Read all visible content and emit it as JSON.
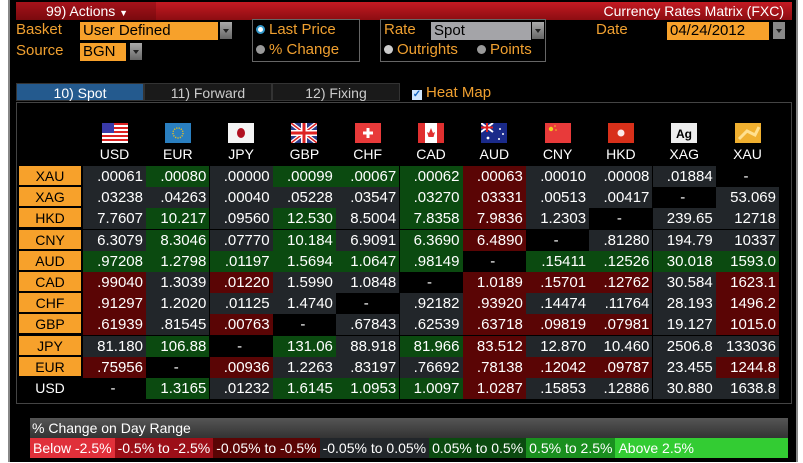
{
  "window": {
    "actions_label": "99) Actions",
    "title": "Currency Rates Matrix (FXC)"
  },
  "controls": {
    "basket_label": "Basket",
    "basket_value": "User Defined",
    "source_label": "Source",
    "source_value": "BGN",
    "price_options": [
      {
        "label": "Last Price",
        "selected": true
      },
      {
        "label": "% Change",
        "selected": false
      }
    ],
    "rate_label": "Rate",
    "rate_value": "Spot",
    "rate_options": [
      {
        "label": "Outrights",
        "selected": true
      },
      {
        "label": "Points",
        "selected": false
      }
    ],
    "date_label": "Date",
    "date_value": "04/24/2012"
  },
  "tabs": [
    {
      "label": "10) Spot",
      "active": true
    },
    {
      "label": "11) Forward",
      "active": false
    },
    {
      "label": "12) Fixing",
      "active": false
    }
  ],
  "heat_map": {
    "label": "Heat Map",
    "checked": true
  },
  "columns": [
    "USD",
    "EUR",
    "JPY",
    "GBP",
    "CHF",
    "CAD",
    "AUD",
    "CNY",
    "HKD",
    "XAG",
    "XAU"
  ],
  "column_icons": [
    "us-flag-icon",
    "eu-flag-icon",
    "japan-flag-icon",
    "uk-flag-icon",
    "swiss-flag-icon",
    "canada-flag-icon",
    "australia-flag-icon",
    "china-flag-icon",
    "hong-kong-flag-icon",
    "silver-icon",
    "gold-icon"
  ],
  "rows": [
    {
      "label": "XAU",
      "values": [
        ".00061",
        ".00080",
        ".00000",
        ".00099",
        ".00067",
        ".00062",
        ".00063",
        ".00010",
        ".00008",
        ".01884",
        "-"
      ],
      "heat": [
        "neutral",
        "up",
        "neutral",
        "up",
        "up",
        "up",
        "down",
        "neutral",
        "neutral",
        "neutral",
        "none"
      ]
    },
    {
      "label": "XAG",
      "values": [
        ".03238",
        ".04263",
        ".00040",
        ".05228",
        ".03547",
        ".03270",
        ".03331",
        ".00513",
        ".00417",
        "-",
        "53.069"
      ],
      "heat": [
        "neutral",
        "neutral",
        "neutral",
        "neutral",
        "neutral",
        "up",
        "down",
        "neutral",
        "neutral",
        "none",
        "neutral"
      ]
    },
    {
      "label": "HKD",
      "values": [
        "7.7607",
        "10.217",
        ".09560",
        "12.530",
        "8.5004",
        "7.8358",
        "7.9836",
        "1.2303",
        "-",
        "239.65",
        "12718"
      ],
      "heat": [
        "neutral",
        "up",
        "neutral",
        "up",
        "neutral",
        "up",
        "down",
        "neutral",
        "none",
        "neutral",
        "neutral"
      ]
    },
    {
      "label": "CNY",
      "values": [
        "6.3079",
        "8.3046",
        ".07770",
        "10.184",
        "6.9091",
        "6.3690",
        "6.4890",
        "-",
        ".81280",
        "194.79",
        "10337"
      ],
      "heat": [
        "neutral",
        "up",
        "neutral",
        "up",
        "neutral",
        "up",
        "down",
        "none",
        "neutral",
        "neutral",
        "neutral"
      ]
    },
    {
      "label": "AUD",
      "values": [
        ".97208",
        "1.2798",
        ".01197",
        "1.5694",
        "1.0647",
        ".98149",
        "-",
        ".15411",
        ".12526",
        "30.018",
        "1593.0"
      ],
      "heat": [
        "up",
        "up",
        "up",
        "up",
        "up",
        "up",
        "none",
        "up",
        "up",
        "up",
        "up"
      ]
    },
    {
      "label": "CAD",
      "values": [
        ".99040",
        "1.3039",
        ".01220",
        "1.5990",
        "1.0848",
        "-",
        "1.0189",
        ".15701",
        ".12762",
        "30.584",
        "1623.1"
      ],
      "heat": [
        "down",
        "neutral",
        "down",
        "neutral",
        "neutral",
        "none",
        "down",
        "down",
        "down",
        "neutral",
        "down"
      ]
    },
    {
      "label": "CHF",
      "values": [
        ".91297",
        "1.2020",
        ".01125",
        "1.4740",
        "-",
        ".92182",
        ".93920",
        ".14474",
        ".11764",
        "28.193",
        "1496.2"
      ],
      "heat": [
        "down",
        "neutral",
        "neutral",
        "neutral",
        "none",
        "neutral",
        "down",
        "neutral",
        "neutral",
        "neutral",
        "down"
      ]
    },
    {
      "label": "GBP",
      "values": [
        ".61939",
        ".81545",
        ".00763",
        "-",
        ".67843",
        ".62539",
        ".63718",
        ".09819",
        ".07981",
        "19.127",
        "1015.0"
      ],
      "heat": [
        "down",
        "neutral",
        "down",
        "none",
        "neutral",
        "neutral",
        "down",
        "down",
        "down",
        "neutral",
        "down"
      ]
    },
    {
      "label": "JPY",
      "values": [
        "81.180",
        "106.88",
        "-",
        "131.06",
        "88.918",
        "81.966",
        "83.512",
        "12.870",
        "10.460",
        "2506.8",
        "133036"
      ],
      "heat": [
        "neutral",
        "up",
        "none",
        "up",
        "neutral",
        "up",
        "down",
        "neutral",
        "neutral",
        "neutral",
        "neutral"
      ]
    },
    {
      "label": "EUR",
      "values": [
        ".75956",
        "-",
        ".00936",
        "1.2263",
        ".83197",
        ".76692",
        ".78138",
        ".12042",
        ".09787",
        "23.455",
        "1244.8"
      ],
      "heat": [
        "down",
        "none",
        "down",
        "neutral",
        "neutral",
        "neutral",
        "down",
        "down",
        "down",
        "neutral",
        "down"
      ]
    },
    {
      "label": "USD",
      "values": [
        "-",
        "1.3165",
        ".01232",
        "1.6145",
        "1.0953",
        "1.0097",
        "1.0287",
        ".15853",
        ".12886",
        "30.880",
        "1638.8"
      ],
      "heat": [
        "none",
        "up",
        "neutral",
        "up",
        "up",
        "up",
        "down",
        "neutral",
        "neutral",
        "neutral",
        "neutral"
      ]
    }
  ],
  "legend": {
    "title": "% Change on Day Range",
    "ranges": [
      {
        "label": "Below -2.5%",
        "color": "#e0303a"
      },
      {
        "label": "-0.5% to -2.5%",
        "color": "#9c0f18"
      },
      {
        "label": "-0.05% to -0.5%",
        "color": "#5a0505"
      },
      {
        "label": "-0.05% to 0.05%",
        "color": "#22262a"
      },
      {
        "label": "0.05% to 0.5%",
        "color": "#0b4a10"
      },
      {
        "label": "0.5% to 2.5%",
        "color": "#1a8f1f"
      },
      {
        "label": "Above 2.5%",
        "color": "#33cc33"
      }
    ]
  }
}
